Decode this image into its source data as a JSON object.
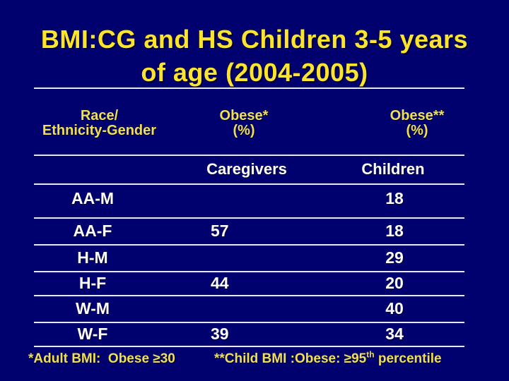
{
  "slide": {
    "title_line1": "BMI:CG and HS Children 3-5 years",
    "title_line2": "of age (2004-2005)"
  },
  "colors": {
    "background": "#00006E",
    "title_yellow": "#FCE42E",
    "header_yellow": "#F0DF55",
    "body_text": "#FFFFFF",
    "rule": "#E9E9F6"
  },
  "table": {
    "col_headers": {
      "race_line1": "Race/",
      "race_line2": "Ethnicity-Gender",
      "obese1_line1": "Obese*",
      "obese1_line2": "(%)",
      "obese2_line1": "Obese**",
      "obese2_line2": "(%)"
    },
    "subheaders": {
      "caregivers": "Caregivers",
      "children": "Children"
    },
    "rows": [
      {
        "label": "AA-M",
        "caregivers": "",
        "children": "18"
      },
      {
        "label": "AA-F",
        "caregivers": "57",
        "children": "18"
      },
      {
        "label": "H-M",
        "caregivers": "",
        "children": "29"
      },
      {
        "label": "H-F",
        "caregivers": "44",
        "children": "20"
      },
      {
        "label": "W-M",
        "caregivers": "",
        "children": "40"
      },
      {
        "label": "W-F",
        "caregivers": "39",
        "children": "34"
      }
    ]
  },
  "footnotes": {
    "left": "*Adult BMI:  Obese ≥30",
    "right_prefix": "**Child BMI :Obese: ≥95",
    "right_sup": "th",
    "right_suffix": " percentile"
  }
}
